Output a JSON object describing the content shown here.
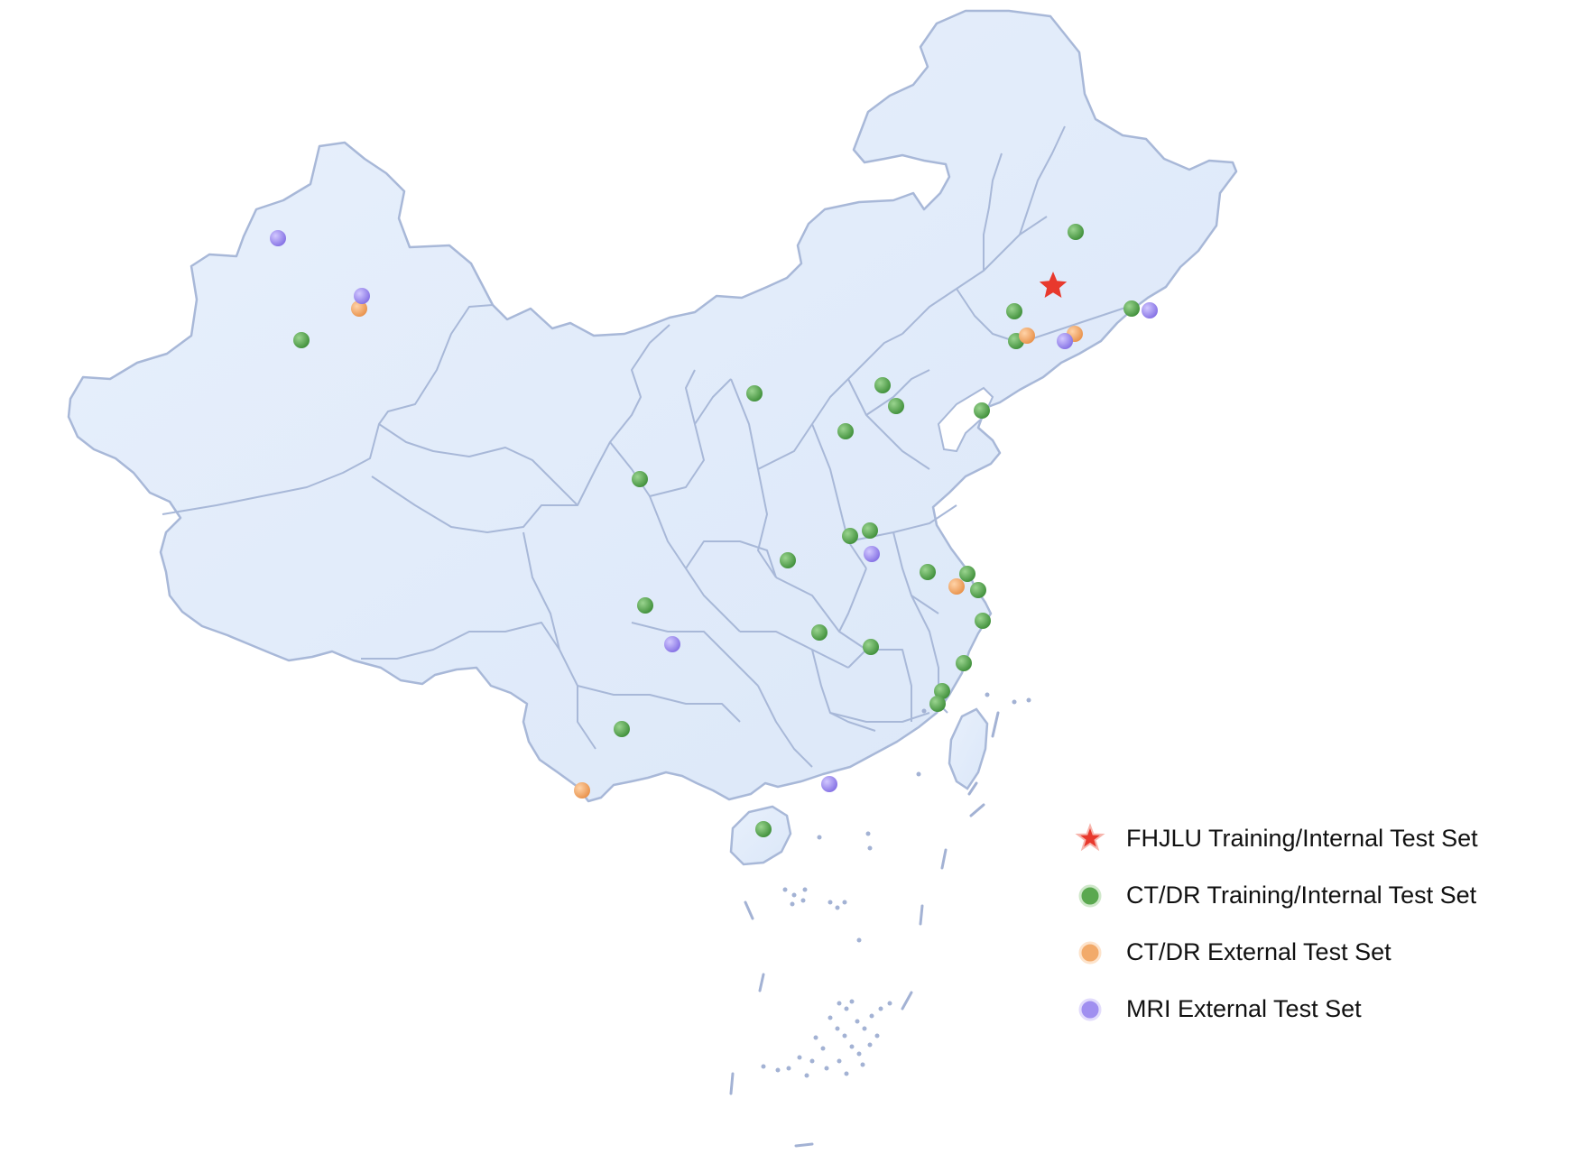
{
  "legend": [
    {
      "label": "FHJLU Training/Internal Test Set",
      "icon": "red-star-icon",
      "color": "#e8392d"
    },
    {
      "label": "CT/DR Training/Internal Test Set",
      "icon": "green-dot-icon",
      "color": "#5aa84f"
    },
    {
      "label": "CT/DR External Test Set",
      "icon": "orange-dot-icon",
      "color": "#f2aa6a"
    },
    {
      "label": "MRI External Test Set",
      "icon": "purple-dot-icon",
      "color": "#a08ff0"
    }
  ],
  "colors": {
    "land": "#e2ecfb",
    "border": "#a8b8d8"
  }
}
